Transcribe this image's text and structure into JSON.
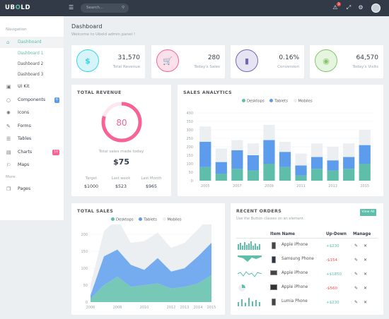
{
  "topbar": {
    "logo_main": "UB",
    "logo_accent": "O",
    "logo_rest": "LD",
    "menu_icon": "menu-icon",
    "search_placeholder": "Search...",
    "search_icon": "search-icon",
    "notification_count": "3"
  },
  "sidebar": {
    "nav_heading": "Navigation",
    "items": [
      {
        "label": "Dashboard",
        "icon": "home-icon"
      },
      {
        "label": "UI Kit",
        "icon": "briefcase-icon"
      },
      {
        "label": "Components",
        "icon": "lightbulb-icon",
        "badge": "6"
      },
      {
        "label": "Icons",
        "icon": "spinner-icon"
      },
      {
        "label": "Forms",
        "icon": "edit-icon"
      },
      {
        "label": "Tables",
        "icon": "list-icon"
      },
      {
        "label": "Charts",
        "icon": "chart-icon",
        "badge": "10"
      },
      {
        "label": "Maps",
        "icon": "map-icon"
      }
    ],
    "subitems": [
      "Dashboard 1",
      "Dashboard 2",
      "Dashboard 3"
    ],
    "more_heading": "More",
    "more_items": [
      {
        "label": "Pages",
        "icon": "pages-icon"
      }
    ],
    "colors": {
      "components_badge": "#5d9cec",
      "charts_badge": "#f76397"
    }
  },
  "page": {
    "title": "Dashboard",
    "subtitle": "Welcome to Ubold admin panel !"
  },
  "stats": [
    {
      "value": "31,570",
      "label": "Total Revenue",
      "icon": "dollar-icon",
      "color": "#34d3eb",
      "bg": "#d7f4f9"
    },
    {
      "value": "280",
      "label": "Today's Sales",
      "icon": "cart-icon",
      "color": "#f76397",
      "bg": "#fde0ea"
    },
    {
      "value": "0.16%",
      "label": "Conversion",
      "icon": "bar-chart-icon",
      "color": "#7266ba",
      "bg": "#e6e3f3"
    },
    {
      "value": "64,570",
      "label": "Today's Visits",
      "icon": "eye-icon",
      "color": "#81c868",
      "bg": "#e5f5df"
    }
  ],
  "total_revenue": {
    "title": "TOTAL REVENUE",
    "gauge_value": "80",
    "gauge_fraction": 0.8,
    "caption": "Total sales made today",
    "amount": "$75",
    "columns": [
      {
        "label": "Target",
        "value": "$1000"
      },
      {
        "label": "Last week",
        "value": "$523"
      },
      {
        "label": "Last Month",
        "value": "$965"
      }
    ]
  },
  "sales_analytics": {
    "title": "SALES ANALYTICS",
    "chart_data": {
      "type": "bar",
      "title": "SALES ANALYTICS",
      "legend": [
        "Desktops",
        "Tablets",
        "Mobiles"
      ],
      "colors": [
        "#5fbeaa",
        "#5d9cec",
        "#ebeff2"
      ],
      "categories": [
        "2005",
        "2006",
        "2007",
        "2008",
        "2009",
        "2010",
        "2011",
        "2012",
        "2013",
        "2014",
        "2015"
      ],
      "series": [
        {
          "name": "Desktops",
          "values": [
            80,
            40,
            70,
            60,
            100,
            80,
            30,
            70,
            60,
            70,
            100
          ]
        },
        {
          "name": "Tablets",
          "values": [
            150,
            70,
            110,
            90,
            140,
            90,
            60,
            70,
            60,
            70,
            110
          ]
        },
        {
          "name": "Mobiles",
          "values": [
            90,
            80,
            60,
            70,
            90,
            60,
            70,
            80,
            80,
            80,
            90
          ]
        }
      ],
      "x_tick_labels": [
        "2005",
        "2007",
        "2009",
        "2011",
        "2013",
        "2015"
      ],
      "y_ticks": [
        0,
        50,
        100,
        150,
        200,
        250,
        300,
        350,
        400
      ],
      "ylim": [
        0,
        400
      ],
      "grid": true
    }
  },
  "total_sales": {
    "title": "TOTAL SALES",
    "chart_data": {
      "type": "area",
      "title": "TOTAL SALES",
      "legend": [
        "Desktops",
        "Tablets",
        "Mobiles"
      ],
      "colors": [
        "#5fbeaa",
        "#5d9cec",
        "#ebeff2"
      ],
      "x": [
        2006,
        2007,
        2008,
        2009,
        2010,
        2011,
        2012,
        2013,
        2014,
        2015
      ],
      "series": [
        {
          "name": "Desktops",
          "values": [
            10,
            50,
            75,
            45,
            50,
            55,
            40,
            45,
            55,
            80
          ]
        },
        {
          "name": "Tablets",
          "values": [
            10,
            85,
            80,
            65,
            45,
            75,
            50,
            55,
            80,
            95
          ]
        },
        {
          "name": "Mobiles",
          "values": [
            30,
            75,
            90,
            65,
            85,
            75,
            70,
            75,
            80,
            80
          ]
        }
      ],
      "x_tick_labels": [
        "2006",
        "2008",
        "2010",
        "2012",
        "2013",
        "2014",
        "2015"
      ],
      "y_ticks": [
        0,
        50,
        100,
        150,
        200
      ],
      "ylim": [
        0,
        200
      ],
      "grid": true
    }
  },
  "recent_orders": {
    "title": "RECENT ORDERS",
    "subtitle": "Use the Button classes on an element.",
    "view_all": "View All",
    "headers": [
      "Item Name",
      "Up-Down",
      "Manage"
    ],
    "rows": [
      {
        "item": "Apple iPhone",
        "updown": "+$230",
        "spark": "bar"
      },
      {
        "item": "Samsung Phone",
        "updown": "-$154",
        "spark": "area"
      },
      {
        "item": "Apple iPhone",
        "updown": "+$1850",
        "spark": "line"
      },
      {
        "item": "Apple iPhone",
        "updown": "-$560",
        "spark": "pie"
      },
      {
        "item": "Lumia Phone",
        "updown": "+$230",
        "spark": "bar"
      }
    ],
    "edit_icon": "pencil-icon",
    "delete_icon": "close-icon",
    "colors": {
      "up": "#5fbeaa",
      "down": "#f05050",
      "spark": "#5fbeaa"
    }
  }
}
